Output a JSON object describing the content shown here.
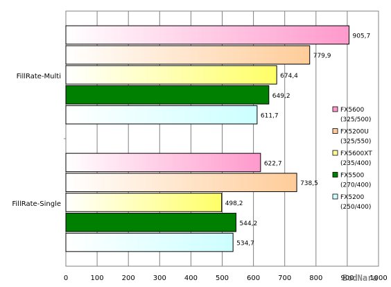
{
  "chart_data": {
    "type": "bar",
    "orientation": "horizontal",
    "categories": [
      "FillRate-Multi",
      "FillRate-Single"
    ],
    "series": [
      {
        "name": "FX5600",
        "sub": "(325/500)",
        "values": [
          905.7,
          622.7
        ],
        "value_labels": [
          "905,7",
          "622,7"
        ],
        "color_start": "#ffffff",
        "color_end": "#ff99cc",
        "legend_color": "#ff99cc"
      },
      {
        "name": "FX5200U",
        "sub": "(325/550)",
        "values": [
          779.9,
          738.5
        ],
        "value_labels": [
          "779,9",
          "738,5"
        ],
        "color_start": "#ffffff",
        "color_end": "#ffcc99",
        "legend_color": "#ffcc99"
      },
      {
        "name": "FX5600XT",
        "sub": "(235/400)",
        "values": [
          674.4,
          498.2
        ],
        "value_labels": [
          "674,4",
          "498,2"
        ],
        "color_start": "#ffffff",
        "color_end": "#ffff66",
        "legend_color": "#ffff99"
      },
      {
        "name": "FX5500",
        "sub": "(270/400)",
        "values": [
          649.2,
          544.2
        ],
        "value_labels": [
          "649,2",
          "544,2"
        ],
        "color_start": "#008000",
        "color_end": "#008000",
        "legend_color": "#008000"
      },
      {
        "name": "FX5200",
        "sub": "(250/400)",
        "values": [
          611.7,
          534.7
        ],
        "value_labels": [
          "611,7",
          "534,7"
        ],
        "color_start": "#ffffff",
        "color_end": "#ccffff",
        "legend_color": "#ccffff"
      }
    ],
    "xlim": [
      0,
      1000
    ],
    "xticks": [
      "0",
      "100",
      "200",
      "300",
      "400",
      "500",
      "600",
      "700",
      "800",
      "900",
      "1000"
    ],
    "grid": true,
    "legend_position": "right",
    "title": "",
    "xlabel": "",
    "ylabel": ""
  },
  "watermark": "BodNara"
}
